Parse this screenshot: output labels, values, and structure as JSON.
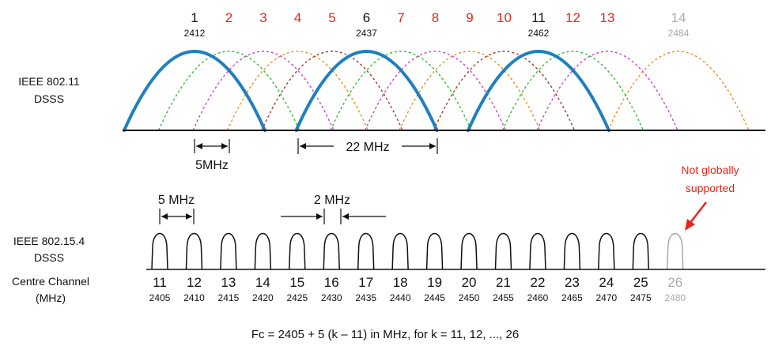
{
  "colors": {
    "black": "#111111",
    "red": "#e8251b",
    "gray": "#aaaaaa",
    "blue": "#1f7fc0",
    "green": "#2fbf2f",
    "magenta": "#d23fd2",
    "orange": "#e8902a",
    "brown": "#a83a28",
    "annotation_red": "#e8251b"
  },
  "wifi": {
    "label_line1": "IEEE 802.11",
    "label_line2": "DSSS",
    "channels": [
      {
        "n": "1",
        "f": "2412",
        "color": "black"
      },
      {
        "n": "2",
        "f": "",
        "color": "red"
      },
      {
        "n": "3",
        "f": "",
        "color": "red"
      },
      {
        "n": "4",
        "f": "",
        "color": "red"
      },
      {
        "n": "5",
        "f": "",
        "color": "red"
      },
      {
        "n": "6",
        "f": "2437",
        "color": "black"
      },
      {
        "n": "7",
        "f": "",
        "color": "red"
      },
      {
        "n": "8",
        "f": "",
        "color": "red"
      },
      {
        "n": "9",
        "f": "",
        "color": "red"
      },
      {
        "n": "10",
        "f": "",
        "color": "red"
      },
      {
        "n": "11",
        "f": "2462",
        "color": "black"
      },
      {
        "n": "12",
        "f": "",
        "color": "red"
      },
      {
        "n": "13",
        "f": "",
        "color": "red"
      },
      {
        "n": "14",
        "f": "2484",
        "color": "gray"
      }
    ],
    "spacing_label": "5MHz",
    "width_label": "22 MHz"
  },
  "zigbee": {
    "label_line1": "IEEE 802.15.4",
    "label_line2": "DSSS",
    "axis_label_line1": "Centre Channel",
    "axis_label_line2": "(MHz)",
    "spacing_label": "5 MHz",
    "gap_label": "2 MHz",
    "channels": [
      {
        "n": "11",
        "f": "2405",
        "gray": false
      },
      {
        "n": "12",
        "f": "2410",
        "gray": false
      },
      {
        "n": "13",
        "f": "2415",
        "gray": false
      },
      {
        "n": "14",
        "f": "2420",
        "gray": false
      },
      {
        "n": "15",
        "f": "2425",
        "gray": false
      },
      {
        "n": "16",
        "f": "2430",
        "gray": false
      },
      {
        "n": "17",
        "f": "2435",
        "gray": false
      },
      {
        "n": "18",
        "f": "2440",
        "gray": false
      },
      {
        "n": "19",
        "f": "2445",
        "gray": false
      },
      {
        "n": "20",
        "f": "2450",
        "gray": false
      },
      {
        "n": "21",
        "f": "2455",
        "gray": false
      },
      {
        "n": "22",
        "f": "2460",
        "gray": false
      },
      {
        "n": "23",
        "f": "2465",
        "gray": false
      },
      {
        "n": "24",
        "f": "2470",
        "gray": false
      },
      {
        "n": "25",
        "f": "2475",
        "gray": false
      },
      {
        "n": "26",
        "f": "2480",
        "gray": true
      }
    ],
    "note_line1": "Not globally",
    "note_line2": "supported"
  },
  "formula": "Fc = 2405 + 5 (k – 11) in MHz, for k = 11, 12, ..., 26"
}
